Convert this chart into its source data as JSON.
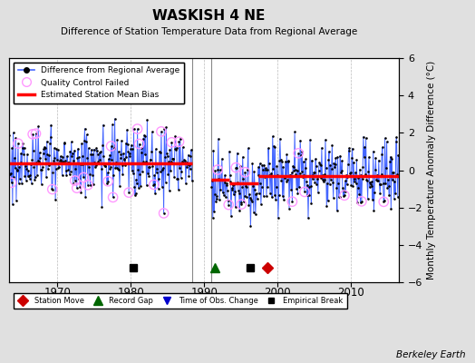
{
  "title": "WASKISH 4 NE",
  "subtitle": "Difference of Station Temperature Data from Regional Average",
  "ylabel_right": "Monthly Temperature Anomaly Difference (°C)",
  "credit": "Berkeley Earth",
  "xlim": [
    1963.5,
    2016.5
  ],
  "ylim": [
    -6,
    6
  ],
  "yticks": [
    -6,
    -4,
    -2,
    0,
    2,
    4,
    6
  ],
  "xticks": [
    1970,
    1980,
    1990,
    2000,
    2010
  ],
  "background_color": "#e0e0e0",
  "plot_bg_color": "#ffffff",
  "seg1_x0": 1963.5,
  "seg1_x1": 1988.4,
  "seg1_bias": 0.35,
  "seg2_x0": 1991.0,
  "seg2_x1": 1993.4,
  "seg2_bias": -0.5,
  "seg3_x0": 1993.4,
  "seg3_x1": 1997.3,
  "seg3_bias": -0.7,
  "seg4_x0": 1997.3,
  "seg4_x1": 2016.5,
  "seg4_bias": -0.3,
  "gap_x0": 1988.4,
  "gap_x1": 1991.0,
  "vline1": 1988.4,
  "vline2": 1991.0,
  "empirical_break1_x": 1980.3,
  "empirical_break2_x": 1996.3,
  "record_gap_x": 1991.5,
  "station_move_x": 1998.6,
  "line_color": "#4466ff",
  "bias_color": "#ff0000",
  "qc_color": "#ff99ff",
  "grid_color": "#bbbbbb",
  "vline_color": "#888888"
}
